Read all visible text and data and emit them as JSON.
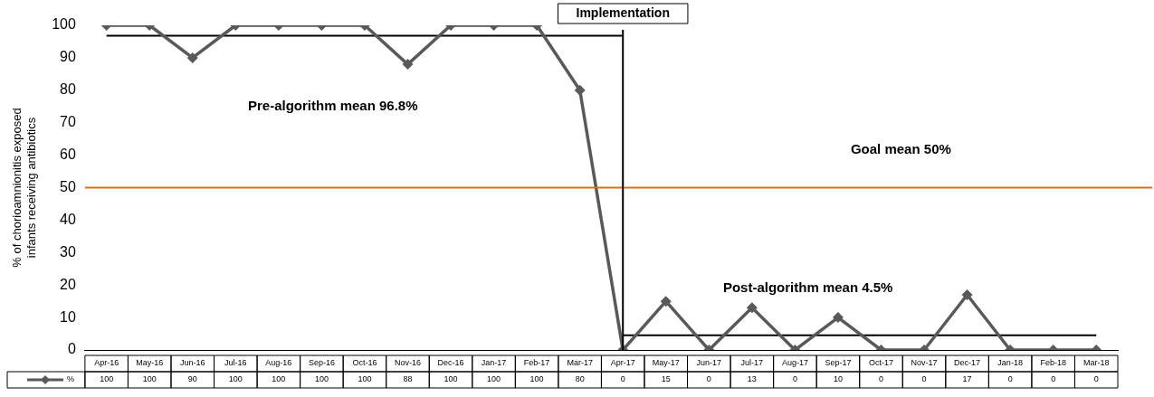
{
  "chart_data": {
    "type": "line",
    "ylabel": "% of chorioamnionitis exposed infants receiving antibiotics",
    "categories": [
      "Apr-16",
      "May-16",
      "Jun-16",
      "Jul-16",
      "Aug-16",
      "Sep-16",
      "Oct-16",
      "Nov-16",
      "Dec-16",
      "Jan-17",
      "Feb-17",
      "Mar-17",
      "Apr-17",
      "May-17",
      "Jun-17",
      "Jul-17",
      "Aug-17",
      "Sep-17",
      "Oct-17",
      "Nov-17",
      "Dec-17",
      "Jan-18",
      "Feb-18",
      "Mar-18"
    ],
    "series": [
      {
        "name": "%",
        "color": "#595959",
        "marker": "diamond",
        "values": [
          100,
          100,
          90,
          100,
          100,
          100,
          100,
          88,
          100,
          100,
          100,
          80,
          0,
          15,
          0,
          13,
          0,
          10,
          0,
          0,
          17,
          0,
          0,
          0
        ],
        "value_labels": [
          "100",
          "100",
          "90",
          "100",
          "100",
          "100",
          "100",
          "88",
          "100",
          "100",
          "100",
          "80",
          "0",
          "15",
          "0",
          "13",
          "0",
          "10",
          "0",
          "0",
          "17",
          "0",
          "0",
          "0"
        ]
      },
      {
        "type": "line",
        "color": "#000000",
        "marker": "none",
        "x": [
          "Apr-16",
          "Apr-17"
        ],
        "values": [
          96.8,
          96.8
        ]
      },
      {
        "type": "line",
        "color": "#000000",
        "marker": "none",
        "x": [
          "Apr-17",
          "Mar-18"
        ],
        "values": [
          4.5,
          4.5
        ]
      }
    ],
    "ylim": [
      0,
      100
    ],
    "yticks": [
      0,
      10,
      20,
      30,
      40,
      50,
      60,
      70,
      80,
      90,
      100
    ],
    "grid": false,
    "legend": "bottom left",
    "ref_lines": [
      {
        "axis": "y",
        "value": 50,
        "color": "#e46c0a"
      },
      {
        "axis": "x",
        "value": "Apr-17",
        "label": "Implementation",
        "color": "#000000"
      }
    ],
    "annotations": [
      "Pre-algorithm mean 96.8%",
      "Post-algorithm mean 4.5%",
      "Goal mean 50%"
    ]
  }
}
